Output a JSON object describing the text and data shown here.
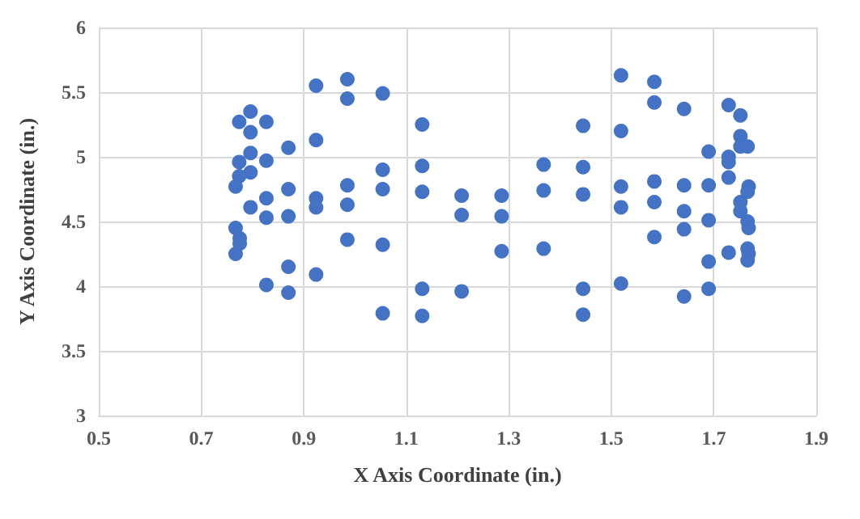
{
  "chart_data": {
    "type": "scatter",
    "xlabel": "X Axis Coordinate (in.)",
    "ylabel": "Y Axis Coordinate (in.)",
    "xlim": [
      0.5,
      1.9
    ],
    "xticks": [
      0.5,
      0.7,
      0.9,
      1.1,
      1.3,
      1.5,
      1.7,
      1.9
    ],
    "ylim": [
      3,
      6
    ],
    "yticks": [
      3,
      3.5,
      4,
      4.5,
      5,
      5.5,
      6
    ],
    "grid": true,
    "marker": "circle",
    "series": [
      {
        "color": "#4472c4",
        "x": [
          0.924,
          0.985,
          0.985,
          1.054,
          0.796,
          0.774,
          0.827,
          0.796,
          1.131,
          0.87,
          0.924,
          0.796,
          0.774,
          0.827,
          0.796,
          0.774,
          0.767,
          1.131,
          1.054,
          0.87,
          0.985,
          1.054,
          1.131,
          1.208,
          0.827,
          0.924,
          0.924,
          0.796,
          0.985,
          0.827,
          0.87,
          1.208,
          0.767,
          0.775,
          0.775,
          0.767,
          0.985,
          1.054,
          0.87,
          0.924,
          0.827,
          0.87,
          1.131,
          1.208,
          1.054,
          1.131,
          1.286,
          1.286,
          1.286,
          1.368,
          1.368,
          1.368,
          1.445,
          1.445,
          1.445,
          1.445,
          1.445,
          1.519,
          1.519,
          1.519,
          1.519,
          1.519,
          1.584,
          1.584,
          1.584,
          1.584,
          1.584,
          1.642,
          1.642,
          1.642,
          1.642,
          1.642,
          1.69,
          1.69,
          1.69,
          1.69,
          1.69,
          1.729,
          1.729,
          1.729,
          1.729,
          1.729,
          1.752,
          1.752,
          1.752,
          1.766,
          1.752,
          1.752,
          1.768,
          1.766,
          1.766,
          1.768,
          1.766,
          1.768,
          1.766
        ],
        "values": [
          5.55,
          5.6,
          5.45,
          5.49,
          5.35,
          5.27,
          5.27,
          5.19,
          5.25,
          5.07,
          5.13,
          5.03,
          4.96,
          4.97,
          4.88,
          4.85,
          4.77,
          4.93,
          4.9,
          4.75,
          4.78,
          4.75,
          4.73,
          4.7,
          4.68,
          4.68,
          4.61,
          4.61,
          4.63,
          4.53,
          4.54,
          4.55,
          4.45,
          4.37,
          4.33,
          4.25,
          4.36,
          4.32,
          4.15,
          4.09,
          4.01,
          3.95,
          3.98,
          3.96,
          3.79,
          3.77,
          4.7,
          4.54,
          4.27,
          4.94,
          4.74,
          4.29,
          5.24,
          4.92,
          4.71,
          3.98,
          3.78,
          5.63,
          5.2,
          4.77,
          4.61,
          4.02,
          5.58,
          5.42,
          4.81,
          4.65,
          4.38,
          5.37,
          4.78,
          4.58,
          4.44,
          3.92,
          5.04,
          4.78,
          4.51,
          4.19,
          3.98,
          5.4,
          5.0,
          4.96,
          4.84,
          4.26,
          5.32,
          5.16,
          5.08,
          5.08,
          4.65,
          4.58,
          4.77,
          4.73,
          4.5,
          4.45,
          4.29,
          4.25,
          4.2
        ]
      }
    ]
  }
}
